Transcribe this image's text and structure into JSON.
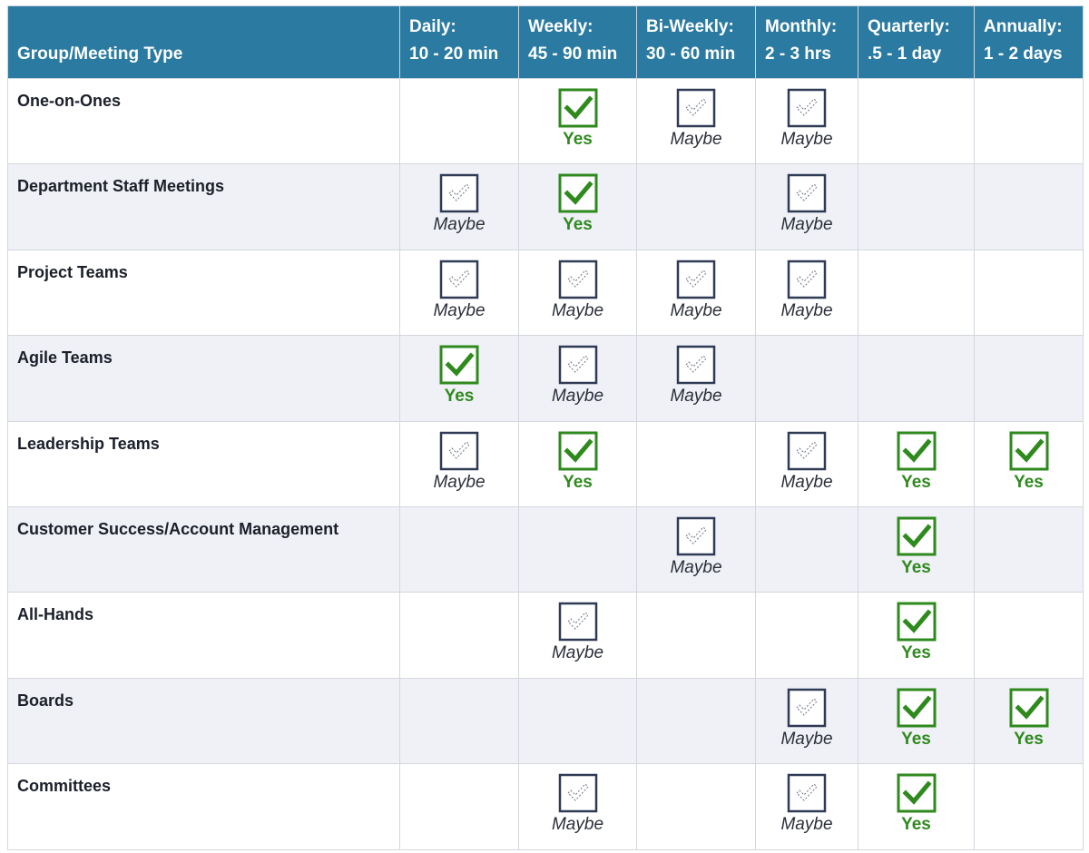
{
  "table": {
    "header": [
      {
        "lines": [
          "Group/Meeting Type"
        ]
      },
      {
        "lines": [
          "Daily:",
          "10 - 20 min"
        ]
      },
      {
        "lines": [
          "Weekly:",
          "45 - 90 min"
        ]
      },
      {
        "lines": [
          "Bi-Weekly:",
          "30 - 60 min"
        ]
      },
      {
        "lines": [
          "Monthly:",
          "2 - 3 hrs"
        ]
      },
      {
        "lines": [
          "Quarterly:",
          ".5 - 1 day"
        ]
      },
      {
        "lines": [
          "Annually:",
          "1 - 2 days"
        ]
      }
    ],
    "rows": [
      {
        "name": "One-on-Ones",
        "cells": [
          null,
          "Yes",
          "Maybe",
          "Maybe",
          null,
          null
        ]
      },
      {
        "name": "Department Staff Meetings",
        "cells": [
          "Maybe",
          "Yes",
          null,
          "Maybe",
          null,
          null
        ]
      },
      {
        "name": "Project Teams",
        "cells": [
          "Maybe",
          "Maybe",
          "Maybe",
          "Maybe",
          null,
          null
        ]
      },
      {
        "name": "Agile Teams",
        "cells": [
          "Yes",
          "Maybe",
          "Maybe",
          null,
          null,
          null
        ]
      },
      {
        "name": "Leadership Teams",
        "cells": [
          "Maybe",
          "Yes",
          null,
          "Maybe",
          "Yes",
          "Yes"
        ]
      },
      {
        "name": "Customer Success/Account Management",
        "cells": [
          null,
          null,
          "Maybe",
          null,
          "Yes",
          null
        ]
      },
      {
        "name": "All-Hands",
        "cells": [
          null,
          "Maybe",
          null,
          null,
          "Yes",
          null
        ]
      },
      {
        "name": "Boards",
        "cells": [
          null,
          null,
          null,
          "Maybe",
          "Yes",
          "Yes"
        ]
      },
      {
        "name": "Committees",
        "cells": [
          null,
          "Maybe",
          null,
          "Maybe",
          "Yes",
          null
        ]
      }
    ]
  }
}
